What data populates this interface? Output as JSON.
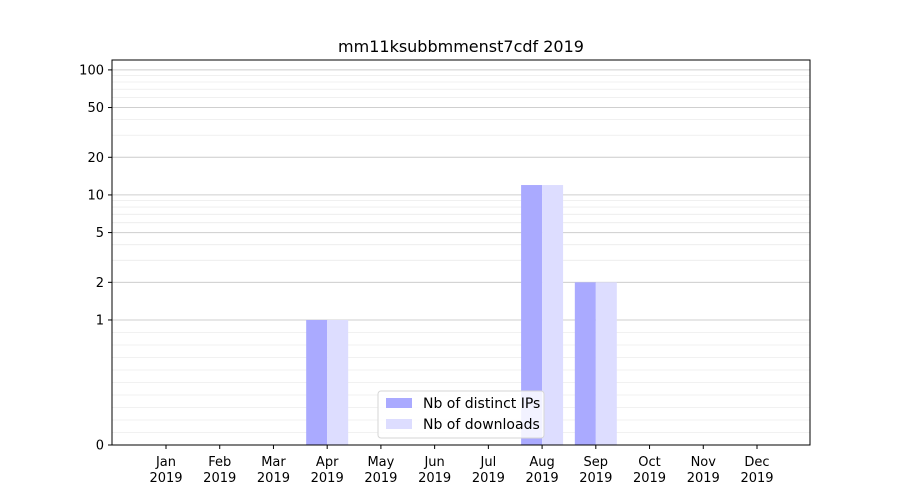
{
  "chart_data": {
    "type": "bar",
    "title": "mm11ksubbmmenst7cdf 2019",
    "categories": [
      {
        "month": "Jan",
        "year": "2019"
      },
      {
        "month": "Feb",
        "year": "2019"
      },
      {
        "month": "Mar",
        "year": "2019"
      },
      {
        "month": "Apr",
        "year": "2019"
      },
      {
        "month": "May",
        "year": "2019"
      },
      {
        "month": "Jun",
        "year": "2019"
      },
      {
        "month": "Jul",
        "year": "2019"
      },
      {
        "month": "Aug",
        "year": "2019"
      },
      {
        "month": "Sep",
        "year": "2019"
      },
      {
        "month": "Oct",
        "year": "2019"
      },
      {
        "month": "Nov",
        "year": "2019"
      },
      {
        "month": "Dec",
        "year": "2019"
      }
    ],
    "series": [
      {
        "name": "Nb of distinct IPs",
        "color": "#aaaaff",
        "values": [
          0,
          0,
          0,
          1,
          0,
          0,
          0,
          12,
          2,
          0,
          0,
          0
        ]
      },
      {
        "name": "Nb of downloads",
        "color": "#ddddff",
        "values": [
          0,
          0,
          0,
          1,
          0,
          0,
          0,
          12,
          2,
          0,
          0,
          0
        ]
      }
    ],
    "y_scale": "symlog",
    "ylim": [
      0,
      120
    ],
    "y_ticks": [
      {
        "value": 0,
        "label": "0"
      },
      {
        "value": 1,
        "label": "1"
      },
      {
        "value": 2,
        "label": "2"
      },
      {
        "value": 5,
        "label": "5"
      },
      {
        "value": 10,
        "label": "10"
      },
      {
        "value": 20,
        "label": "20"
      },
      {
        "value": 50,
        "label": "50"
      },
      {
        "value": 100,
        "label": "100"
      }
    ],
    "grid": true,
    "legend_position": "bottom-center"
  }
}
